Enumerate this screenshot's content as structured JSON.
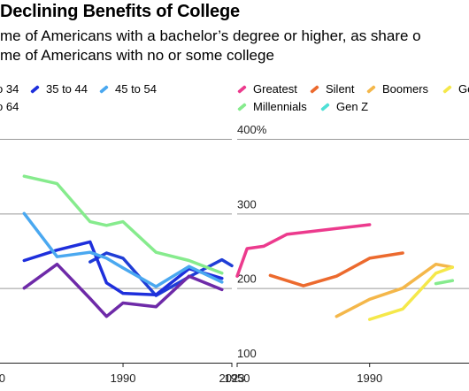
{
  "title": "Declining Benefits of College",
  "subtitle_lines": [
    "me of Americans with a bachelor’s degree or higher, as share o",
    "me of Americans with no or some college"
  ],
  "chart_data": [
    {
      "type": "line",
      "title": "",
      "xlabel": "",
      "ylabel": "",
      "x_ticks": [
        "0",
        "1990",
        "2023"
      ],
      "y_ticks": [],
      "ylim": [
        100,
        400
      ],
      "grid": "horizontal",
      "legend": [
        "o 34",
        "35 to 44",
        "45 to 54",
        "o 64"
      ],
      "series": [
        {
          "name": "o 34",
          "color": "#1f3dd6",
          "points": [
            [
              1980,
              235
            ],
            [
              1985,
              247
            ],
            [
              1990,
              240
            ],
            [
              2000,
              190
            ],
            [
              2010,
              215
            ],
            [
              2020,
              238
            ],
            [
              2023,
              230
            ]
          ]
        },
        {
          "name": "35 to 44",
          "color": "#1e2fdc",
          "points": [
            [
              1960,
              237
            ],
            [
              1970,
              251
            ],
            [
              1980,
              262
            ],
            [
              1985,
              207
            ],
            [
              1990,
              193
            ],
            [
              2000,
              191
            ],
            [
              2010,
              226
            ],
            [
              2020,
              213
            ]
          ]
        },
        {
          "name": "45 to 54",
          "color": "#4aa8f0",
          "points": [
            [
              1960,
              300
            ],
            [
              1970,
              242
            ],
            [
              1980,
              248
            ],
            [
              1985,
              240
            ],
            [
              1990,
              227
            ],
            [
              2000,
              202
            ],
            [
              2010,
              229
            ],
            [
              2020,
              208
            ]
          ]
        },
        {
          "name": "o 64",
          "color": "#6e2aa8",
          "points": [
            [
              1960,
              200
            ],
            [
              1970,
              232
            ],
            [
              1980,
              186
            ],
            [
              1985,
              162
            ],
            [
              1990,
              180
            ],
            [
              2000,
              175
            ],
            [
              2010,
              216
            ],
            [
              2020,
              198
            ]
          ]
        },
        {
          "name": "",
          "color": "#86eb8d",
          "points": [
            [
              1960,
              350
            ],
            [
              1970,
              340
            ],
            [
              1980,
              289
            ],
            [
              1985,
              284
            ],
            [
              1990,
              289
            ],
            [
              2000,
              248
            ],
            [
              2010,
              237
            ],
            [
              2020,
              220
            ]
          ]
        }
      ]
    },
    {
      "type": "line",
      "title": "",
      "xlabel": "",
      "ylabel": "",
      "x_ticks": [
        "1950",
        "1990"
      ],
      "y_ticks": [
        "400%",
        "300",
        "200",
        "100"
      ],
      "ylim": [
        100,
        400
      ],
      "grid": "horizontal",
      "legend": [
        "Greatest",
        "Silent",
        "Boomers",
        "Ge",
        "Millennials",
        "Gen Z"
      ],
      "series": [
        {
          "name": "Greatest",
          "color": "#ec3a8d",
          "points": [
            [
              1950,
              216
            ],
            [
              1953,
              253
            ],
            [
              1958,
              256
            ],
            [
              1965,
              272
            ],
            [
              1990,
              285
            ]
          ]
        },
        {
          "name": "Silent",
          "color": "#ec6a2e",
          "points": [
            [
              1960,
              217
            ],
            [
              1970,
              203
            ],
            [
              1980,
              216
            ],
            [
              1990,
              240
            ],
            [
              2000,
              247
            ]
          ]
        },
        {
          "name": "Boomers",
          "color": "#f4b74a",
          "points": [
            [
              1980,
              162
            ],
            [
              1990,
              185
            ],
            [
              2000,
              200
            ],
            [
              2010,
              232
            ],
            [
              2015,
              228
            ]
          ]
        },
        {
          "name": "Ge",
          "color": "#f5e84a",
          "points": [
            [
              1990,
              158
            ],
            [
              2000,
              172
            ],
            [
              2010,
              220
            ],
            [
              2015,
              228
            ]
          ]
        },
        {
          "name": "Millennials",
          "color": "#86eb8d",
          "points": [
            [
              2010,
              206
            ],
            [
              2015,
              210
            ]
          ]
        },
        {
          "name": "Gen Z",
          "color": "#4fe0d6",
          "points": []
        }
      ]
    }
  ]
}
